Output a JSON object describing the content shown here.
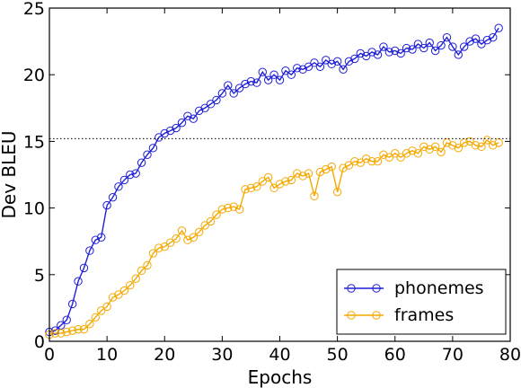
{
  "chart_data": {
    "type": "line",
    "xlabel": "Epochs",
    "ylabel": "Dev BLEU",
    "xlim": [
      0,
      80
    ],
    "ylim": [
      0,
      25
    ],
    "xticks": [
      0,
      10,
      20,
      30,
      40,
      50,
      60,
      70,
      80
    ],
    "yticks": [
      0,
      5,
      10,
      15,
      20,
      25
    ],
    "grid": false,
    "reference_line": {
      "y": 15.2,
      "style": "dotted"
    },
    "legend_position": "lower-right",
    "x": [
      0,
      1,
      2,
      3,
      4,
      5,
      6,
      7,
      8,
      9,
      10,
      11,
      12,
      13,
      14,
      15,
      16,
      17,
      18,
      19,
      20,
      21,
      22,
      23,
      24,
      25,
      26,
      27,
      28,
      29,
      30,
      31,
      32,
      33,
      34,
      35,
      36,
      37,
      38,
      39,
      40,
      41,
      42,
      43,
      44,
      45,
      46,
      47,
      48,
      49,
      50,
      51,
      52,
      53,
      54,
      55,
      56,
      57,
      58,
      59,
      60,
      61,
      62,
      63,
      64,
      65,
      66,
      67,
      68,
      69,
      70,
      71,
      72,
      73,
      74,
      75,
      76,
      77,
      78
    ],
    "series": [
      {
        "name": "phonemes",
        "color": "#1f1fd6",
        "values": [
          0.7,
          0.8,
          1.2,
          1.6,
          2.8,
          4.5,
          5.5,
          6.8,
          7.6,
          7.8,
          10.2,
          10.8,
          11.6,
          12.1,
          12.5,
          12.6,
          13.4,
          14.0,
          14.5,
          15.3,
          15.6,
          15.8,
          16.0,
          16.4,
          16.9,
          16.7,
          17.3,
          17.5,
          17.8,
          18.1,
          18.6,
          19.2,
          18.6,
          19.0,
          19.3,
          19.5,
          19.4,
          20.2,
          19.6,
          20.0,
          19.6,
          20.3,
          20.0,
          20.5,
          20.4,
          20.6,
          20.9,
          20.6,
          21.1,
          20.8,
          21.0,
          20.4,
          21.0,
          21.2,
          21.6,
          21.4,
          21.7,
          21.5,
          22.1,
          21.7,
          21.8,
          21.6,
          22.0,
          21.9,
          22.3,
          22.0,
          22.4,
          21.8,
          22.2,
          22.8,
          22.1,
          21.5,
          22.1,
          22.5,
          22.7,
          22.3,
          22.6,
          22.8,
          23.5
        ]
      },
      {
        "name": "frames",
        "color": "#f5a800",
        "values": [
          0.5,
          0.6,
          0.6,
          0.7,
          0.8,
          0.9,
          0.9,
          1.3,
          1.8,
          2.3,
          2.6,
          3.3,
          3.5,
          3.8,
          4.2,
          4.7,
          5.3,
          5.7,
          6.6,
          7.0,
          7.1,
          7.4,
          7.7,
          8.3,
          7.6,
          7.8,
          8.2,
          8.7,
          9.0,
          9.5,
          9.9,
          10.0,
          10.1,
          9.9,
          11.4,
          11.5,
          11.6,
          12.0,
          12.3,
          11.5,
          11.8,
          12.0,
          12.1,
          12.6,
          12.4,
          12.6,
          10.9,
          12.7,
          12.9,
          13.1,
          11.2,
          13.0,
          13.2,
          13.5,
          13.4,
          13.7,
          13.5,
          13.5,
          14.0,
          13.8,
          14.1,
          13.8,
          14.1,
          14.3,
          14.1,
          14.6,
          14.4,
          14.6,
          14.2,
          14.9,
          14.7,
          14.5,
          14.9,
          15.0,
          14.7,
          14.6,
          15.1,
          14.7,
          14.9
        ]
      }
    ]
  }
}
